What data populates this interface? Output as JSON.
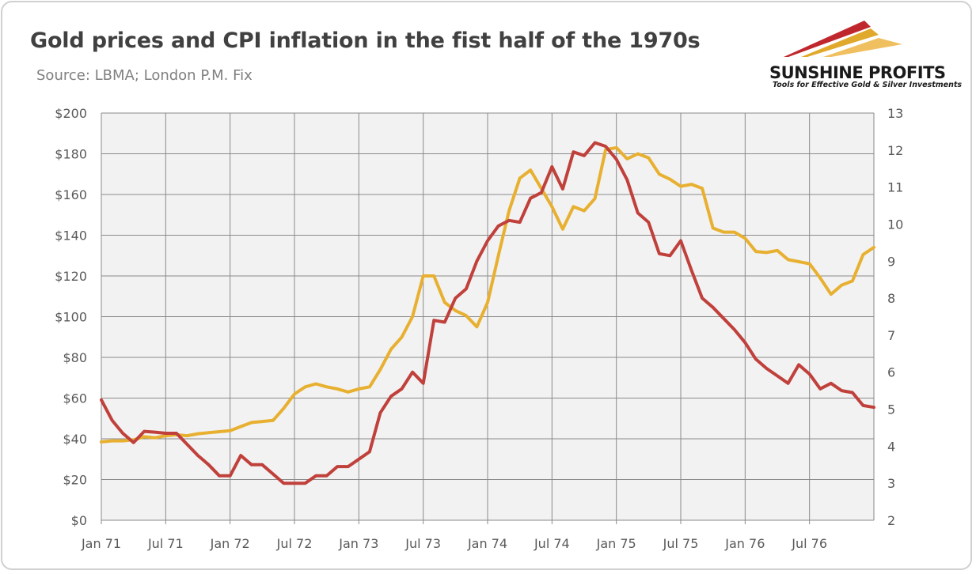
{
  "title": "Gold prices and CPI inflation in the fist half of the 1970s",
  "subtitle": "Source: LBMA; London P.M. Fix",
  "logo": {
    "name": "SUNSHINE PROFITS",
    "tagline": "Tools for Effective Gold & Silver Investments",
    "swoosh_colors": [
      "#c0272d",
      "#e0a92b",
      "#f0c060"
    ]
  },
  "chart_data": {
    "type": "line",
    "x_tick_labels": [
      "Jan 71",
      "Jul 71",
      "Jan 72",
      "Jul 72",
      "Jan 73",
      "Jul 73",
      "Jan 74",
      "Jul 74",
      "Jan 75",
      "Jul 75",
      "Jan 76",
      "Jul 76"
    ],
    "y_left_tick_labels": [
      "$0",
      "$20",
      "$40",
      "$60",
      "$80",
      "$100",
      "$120",
      "$140",
      "$160",
      "$180",
      "$200"
    ],
    "y_right_tick_labels": [
      "2",
      "3",
      "4",
      "5",
      "6",
      "7",
      "8",
      "9",
      "10",
      "11",
      "12",
      "13"
    ],
    "ylim_left": [
      0,
      200
    ],
    "ylim_right": [
      2,
      13
    ],
    "x_start": "1971-01",
    "grid": true,
    "series": [
      {
        "axis": "left",
        "color": "#e8b030",
        "values": [
          38.5,
          39,
          39,
          39.5,
          41,
          40.5,
          41.5,
          42,
          41.5,
          42.5,
          43,
          43.5,
          44,
          46,
          48,
          48.5,
          49,
          55,
          62,
          65.5,
          67,
          65.5,
          64.5,
          63,
          64.5,
          65.5,
          74,
          84,
          90,
          100,
          120,
          120,
          107,
          103,
          100.5,
          95,
          107,
          130,
          152,
          168,
          172,
          163,
          154,
          143,
          154,
          152,
          158,
          182,
          183,
          177.5,
          180,
          178,
          170,
          167.5,
          164,
          165,
          163,
          143.5,
          141.5,
          141.5,
          138.5,
          132,
          131.5,
          132.5,
          128,
          127,
          126,
          119,
          111,
          115.5,
          117.5,
          130.5,
          134
        ]
      },
      {
        "axis": "right",
        "color": "#c0403b",
        "values": [
          5.25,
          4.7,
          4.35,
          4.1,
          4.4,
          4.38,
          4.35,
          4.35,
          4.05,
          3.75,
          3.5,
          3.2,
          3.2,
          3.75,
          3.5,
          3.5,
          3.25,
          3.0,
          3.0,
          3.0,
          3.2,
          3.2,
          3.45,
          3.45,
          3.65,
          3.85,
          4.9,
          5.35,
          5.55,
          6.0,
          5.7,
          7.4,
          7.35,
          8.0,
          8.25,
          9.0,
          9.55,
          9.95,
          10.1,
          10.05,
          10.7,
          10.85,
          11.55,
          10.95,
          11.95,
          11.85,
          12.2,
          12.1,
          11.75,
          11.2,
          10.3,
          10.05,
          9.2,
          9.15,
          9.55,
          8.75,
          8.0,
          7.75,
          7.45,
          7.15,
          6.8,
          6.35,
          6.1,
          5.9,
          5.7,
          6.2,
          5.95,
          5.55,
          5.7,
          5.5,
          5.45,
          5.1,
          5.05
        ]
      }
    ]
  }
}
